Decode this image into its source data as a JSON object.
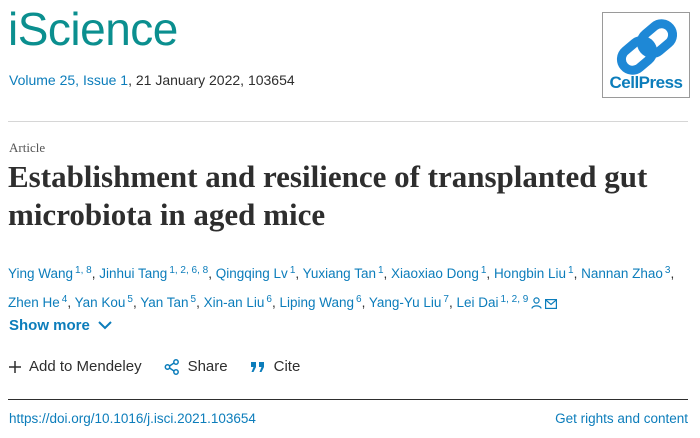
{
  "journal": {
    "title": "iScience",
    "volume_issue": "Volume 25, Issue 1",
    "date_number": ", 21 January 2022, 103654"
  },
  "publisher": {
    "logo_text": "CellPress"
  },
  "article": {
    "type": "Article",
    "title": "Establishment and resilience of transplanted gut microbiota in aged mice"
  },
  "authors": [
    {
      "name": "Ying Wang",
      "aff": "1, 8"
    },
    {
      "name": "Jinhui Tang",
      "aff": "1, 2, 6, 8"
    },
    {
      "name": "Qingqing Lv",
      "aff": "1"
    },
    {
      "name": "Yuxiang Tan",
      "aff": "1"
    },
    {
      "name": "Xiaoxiao Dong",
      "aff": "1"
    },
    {
      "name": "Hongbin Liu",
      "aff": "1"
    },
    {
      "name": "Nannan Zhao",
      "aff": "3"
    },
    {
      "name": "Zhen He",
      "aff": "4"
    },
    {
      "name": "Yan Kou",
      "aff": "5"
    },
    {
      "name": "Yan Tan",
      "aff": "5"
    },
    {
      "name": "Xin-an Liu",
      "aff": "6"
    },
    {
      "name": "Liping Wang",
      "aff": "6"
    },
    {
      "name": "Yang-Yu Liu",
      "aff": "7"
    },
    {
      "name": "Lei Dai",
      "aff": "1, 2, 9"
    }
  ],
  "author_icons": [
    "person-icon",
    "mail-icon"
  ],
  "show_more": "Show more",
  "actions": {
    "mendeley": "Add to Mendeley",
    "share": "Share",
    "cite": "Cite"
  },
  "footer": {
    "doi": "https://doi.org/10.1016/j.isci.2021.103654",
    "rights": "Get rights and content"
  },
  "colors": {
    "brand_teal": "#0b8f8f",
    "link_blue": "#0c7dbb"
  }
}
